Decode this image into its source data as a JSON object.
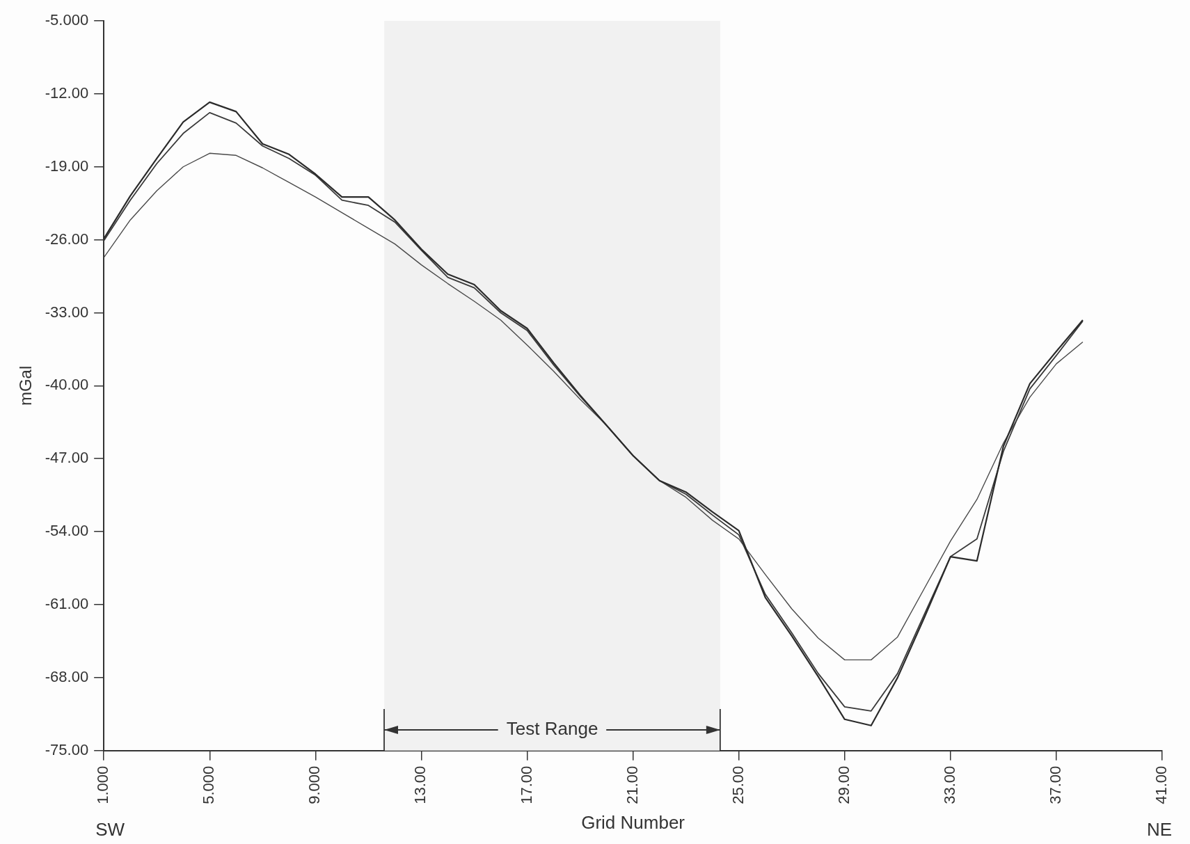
{
  "chart_data": {
    "type": "line",
    "xlabel": "Grid Number",
    "ylabel": "mGal",
    "x": [
      1,
      2,
      3,
      4,
      5,
      6,
      7,
      8,
      9,
      10,
      11,
      12,
      13,
      14,
      15,
      16,
      17,
      18,
      19,
      20,
      21,
      22,
      23,
      24,
      25,
      26,
      27,
      28,
      29,
      30,
      31,
      32,
      33,
      34,
      35,
      36,
      37,
      38
    ],
    "series": [
      {
        "color": "#2b2b2b",
        "values": [
          -25.9,
          -21.8,
          -18.2,
          -14.7,
          -12.8,
          -13.7,
          -16.8,
          -17.8,
          -19.7,
          -21.9,
          -21.9,
          -24.1,
          -26.9,
          -29.3,
          -30.3,
          -32.8,
          -34.5,
          -37.8,
          -40.9,
          -43.8,
          -46.7,
          -49.1,
          -50.2,
          -52.1,
          -53.9,
          -60.3,
          -64.0,
          -67.9,
          -72.0,
          -72.6,
          -68.0,
          -62.3,
          -56.4,
          -56.8,
          -45.8,
          -39.8,
          -36.7,
          -33.7
        ]
      },
      {
        "color": "#3a3a3a",
        "values": [
          -26.1,
          -22.2,
          -18.7,
          -15.8,
          -13.8,
          -14.8,
          -17.0,
          -18.2,
          -19.8,
          -22.2,
          -22.7,
          -24.3,
          -27.0,
          -29.6,
          -30.6,
          -33.0,
          -34.7,
          -38.0,
          -41.0,
          -43.8,
          -46.7,
          -49.1,
          -50.4,
          -52.4,
          -54.3,
          -60.0,
          -63.7,
          -67.6,
          -70.8,
          -71.2,
          -67.6,
          -62.0,
          -56.4,
          -54.7,
          -46.3,
          -40.3,
          -37.1,
          -33.8
        ]
      },
      {
        "color": "#4a4a4a",
        "values": [
          -27.7,
          -24.1,
          -21.3,
          -19.0,
          -17.7,
          -17.9,
          -19.1,
          -20.5,
          -21.9,
          -23.4,
          -24.9,
          -26.4,
          -28.4,
          -30.2,
          -31.9,
          -33.7,
          -36.1,
          -38.6,
          -41.3,
          -43.8,
          -46.7,
          -49.1,
          -50.7,
          -52.9,
          -54.7,
          -58.1,
          -61.4,
          -64.2,
          -66.3,
          -66.3,
          -64.1,
          -59.5,
          -54.9,
          -50.9,
          -45.5,
          -41.1,
          -37.9,
          -35.8
        ]
      }
    ],
    "xlim": [
      1,
      41
    ],
    "xticks": [
      {
        "value": 1,
        "label": "1.000"
      },
      {
        "value": 5,
        "label": "5.000"
      },
      {
        "value": 9,
        "label": "9.000"
      },
      {
        "value": 13,
        "label": "13.00"
      },
      {
        "value": 17,
        "label": "17.00"
      },
      {
        "value": 21,
        "label": "21.00"
      },
      {
        "value": 25,
        "label": "25.00"
      },
      {
        "value": 29,
        "label": "29.00"
      },
      {
        "value": 33,
        "label": "33.00"
      },
      {
        "value": 37,
        "label": "37.00"
      },
      {
        "value": 41,
        "label": "41.00"
      }
    ],
    "ylim": [
      -75,
      -5
    ],
    "yticks": [
      {
        "value": -5,
        "label": "-5.000"
      },
      {
        "value": -12,
        "label": "-12.00"
      },
      {
        "value": -19,
        "label": "-19.00"
      },
      {
        "value": -26,
        "label": "-26.00"
      },
      {
        "value": -33,
        "label": "-33.00"
      },
      {
        "value": -40,
        "label": "-40.00"
      },
      {
        "value": -47,
        "label": "-47.00"
      },
      {
        "value": -54,
        "label": "-54.00"
      },
      {
        "value": -61,
        "label": "-61.00"
      },
      {
        "value": -68,
        "label": "-68.00"
      },
      {
        "value": -75,
        "label": "-75.00"
      }
    ],
    "bands": [
      {
        "axis": "x",
        "from": 11.6,
        "to": 24.3,
        "label": "Test Range"
      }
    ],
    "annotations": [
      "SW",
      "NE"
    ],
    "marker": "none",
    "line_style": "solid"
  }
}
